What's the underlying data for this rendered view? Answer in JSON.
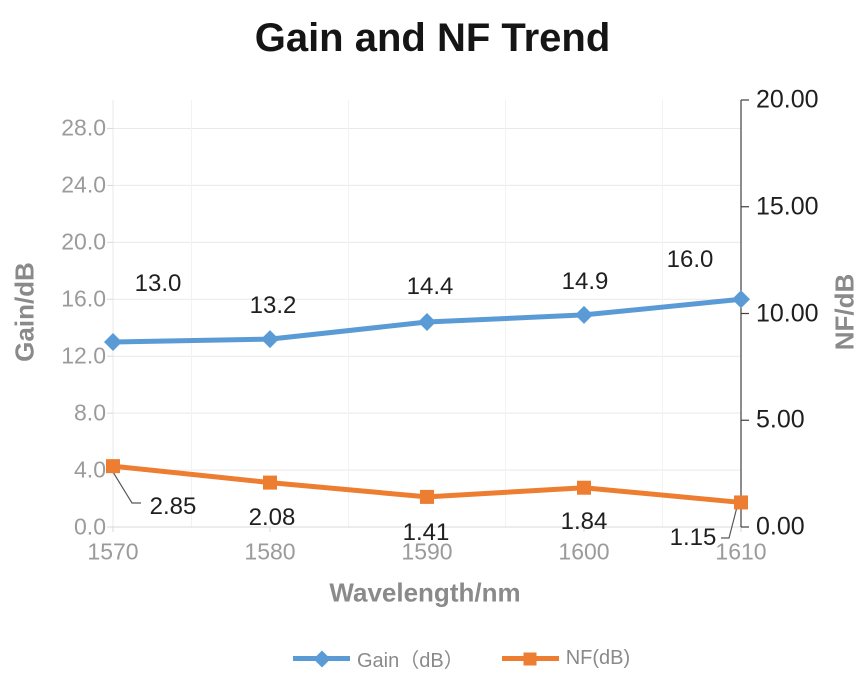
{
  "chart_data": {
    "type": "line",
    "title": "Gain and NF Trend",
    "xlabel": "Wavelength/nm",
    "x": [
      1570,
      1580,
      1590,
      1600,
      1610
    ],
    "x_tick_labels": [
      "1570",
      "1580",
      "1590",
      "1600",
      "1610"
    ],
    "left_axis": {
      "label": "Gain/dB",
      "min": 0,
      "max": 30,
      "tick_step": 4,
      "tick_labels": [
        "0.0",
        "4.0",
        "8.0",
        "12.0",
        "16.0",
        "20.0",
        "24.0",
        "28.0"
      ]
    },
    "right_axis": {
      "label": "NF/dB",
      "min": 0,
      "max": 20,
      "tick_step": 5,
      "tick_labels": [
        "0.00",
        "5.00",
        "10.00",
        "15.00",
        "20.00"
      ]
    },
    "series": [
      {
        "name": "Gain（dB）",
        "axis": "left",
        "color": "#5B9BD5",
        "marker": "diamond",
        "values": [
          13.0,
          13.2,
          14.4,
          14.9,
          16.0
        ],
        "point_labels": [
          "13.0",
          "13.2",
          "14.4",
          "14.9",
          "16.0"
        ]
      },
      {
        "name": "NF(dB)",
        "axis": "right",
        "color": "#ED7D31",
        "marker": "square",
        "values": [
          2.85,
          2.08,
          1.41,
          1.84,
          1.15
        ],
        "point_labels": [
          "2.85",
          "2.08",
          "1.41",
          "1.84",
          "1.15"
        ]
      }
    ],
    "legend_position": "bottom",
    "grid": true,
    "colors": {
      "gain_series": "#5B9BD5",
      "nf_series": "#ED7D31",
      "gridline": "#E9E9E9",
      "vertical_gridline": "#F2F2F2",
      "light_axis": "#D9D9D9",
      "dark_axis": "#404040",
      "gray_text": "#9b9b9b",
      "dark_text": "#1f1f1f"
    }
  }
}
